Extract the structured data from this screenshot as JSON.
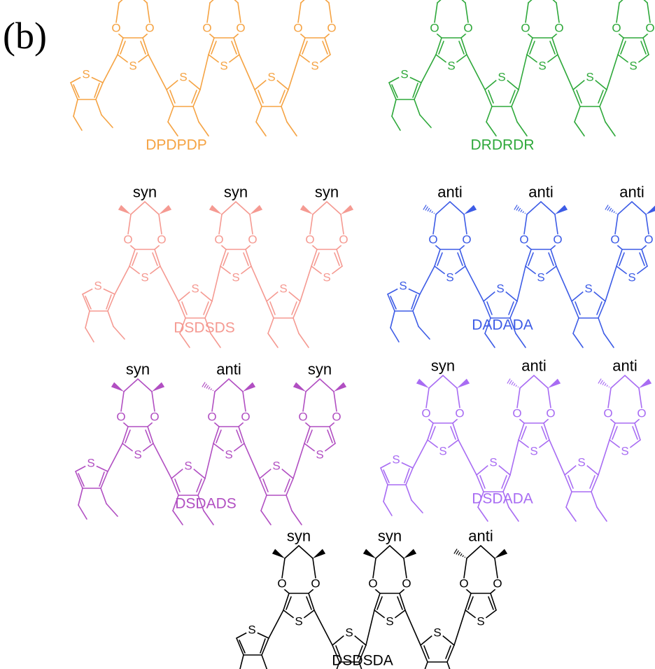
{
  "panel_label": "(b)",
  "atom_labels": {
    "sulfur": "S",
    "oxygen": "O"
  },
  "molecules": [
    {
      "name": "DPDPDP",
      "color": "#F5A343",
      "ring_type": "propylene",
      "stereo": []
    },
    {
      "name": "DRDRDR",
      "color": "#2EA83A",
      "ring_type": "dimethylpropylene",
      "stereo": []
    },
    {
      "name": "DSDSDS",
      "color": "#F59A92",
      "ring_type": "dimethyl-chiral",
      "stereo": [
        "syn",
        "syn",
        "syn"
      ]
    },
    {
      "name": "DADADA",
      "color": "#3D5CE6",
      "ring_type": "dimethyl-chiral",
      "stereo": [
        "anti",
        "anti",
        "anti"
      ]
    },
    {
      "name": "DSDADS",
      "color": "#B14FC2",
      "ring_type": "dimethyl-chiral",
      "stereo": [
        "syn",
        "anti",
        "syn"
      ]
    },
    {
      "name": "DSDADA",
      "color": "#A86CF3",
      "ring_type": "dimethyl-chiral",
      "stereo": [
        "syn",
        "anti",
        "anti"
      ]
    },
    {
      "name": "DSDSDA",
      "color": "#000000",
      "ring_type": "dimethyl-chiral",
      "stereo": [
        "syn",
        "syn",
        "anti"
      ]
    }
  ]
}
